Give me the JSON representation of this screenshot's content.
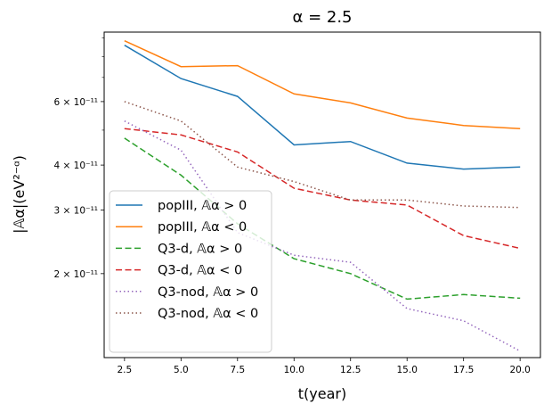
{
  "chart_data": {
    "type": "line",
    "title": "α = 2.5",
    "xlabel": "t(year)",
    "ylabel": "|𝔸α|(eV²⁻ᵅ)",
    "y_scale": "log",
    "xlim": [
      1.6,
      20.9
    ],
    "ylim": [
      1.17e-11,
      9.35e-11
    ],
    "x_ticks": [
      2.5,
      5.0,
      7.5,
      10.0,
      12.5,
      15.0,
      17.5,
      20.0
    ],
    "x_tick_labels": [
      "2.5",
      "5.0",
      "7.5",
      "10.0",
      "12.5",
      "15.0",
      "17.5",
      "20.0"
    ],
    "y_ticks": [
      6e-11,
      4e-11,
      3e-11,
      2e-11
    ],
    "y_tick_labels": [
      "6 × 10⁻¹¹",
      "4 × 10⁻¹¹",
      "3 × 10⁻¹¹",
      "2 × 10⁻¹¹"
    ],
    "grid": false,
    "legend_position": "lower-left",
    "x": [
      2.5,
      5.0,
      7.5,
      10.0,
      12.5,
      15.0,
      17.5,
      20.0
    ],
    "series": [
      {
        "name": "popIII, 𝔸α > 0",
        "color": "#1f77b4",
        "dash": "solid",
        "values": [
          8.6e-11,
          6.95e-11,
          6.2e-11,
          4.55e-11,
          4.65e-11,
          4.05e-11,
          3.9e-11,
          3.95e-11
        ]
      },
      {
        "name": "popIII, 𝔸α < 0",
        "color": "#ff7f0e",
        "dash": "solid",
        "values": [
          8.85e-11,
          7.5e-11,
          7.55e-11,
          6.3e-11,
          5.95e-11,
          5.4e-11,
          5.15e-11,
          5.05e-11
        ]
      },
      {
        "name": "Q3-d, 𝔸α > 0",
        "color": "#2ca02c",
        "dash": "dashed",
        "values": [
          4.75e-11,
          3.75e-11,
          2.75e-11,
          2.2e-11,
          2e-11,
          1.7e-11,
          1.75e-11,
          1.71e-11
        ]
      },
      {
        "name": "Q3-d, 𝔸α < 0",
        "color": "#d62728",
        "dash": "dashed",
        "values": [
          5.05e-11,
          4.85e-11,
          4.35e-11,
          3.45e-11,
          3.2e-11,
          3.1e-11,
          2.55e-11,
          2.35e-11
        ]
      },
      {
        "name": "Q3-nod, 𝔸α > 0",
        "color": "#9467bd",
        "dash": "dotted",
        "values": [
          5.3e-11,
          4.4e-11,
          2.6e-11,
          2.25e-11,
          2.15e-11,
          1.6e-11,
          1.48e-11,
          1.22e-11
        ]
      },
      {
        "name": "Q3-nod, 𝔸α < 0",
        "color": "#8c564b",
        "dash": "dotted",
        "values": [
          6e-11,
          5.3e-11,
          3.95e-11,
          3.6e-11,
          3.2e-11,
          3.2e-11,
          3.08e-11,
          3.05e-11
        ]
      }
    ]
  }
}
